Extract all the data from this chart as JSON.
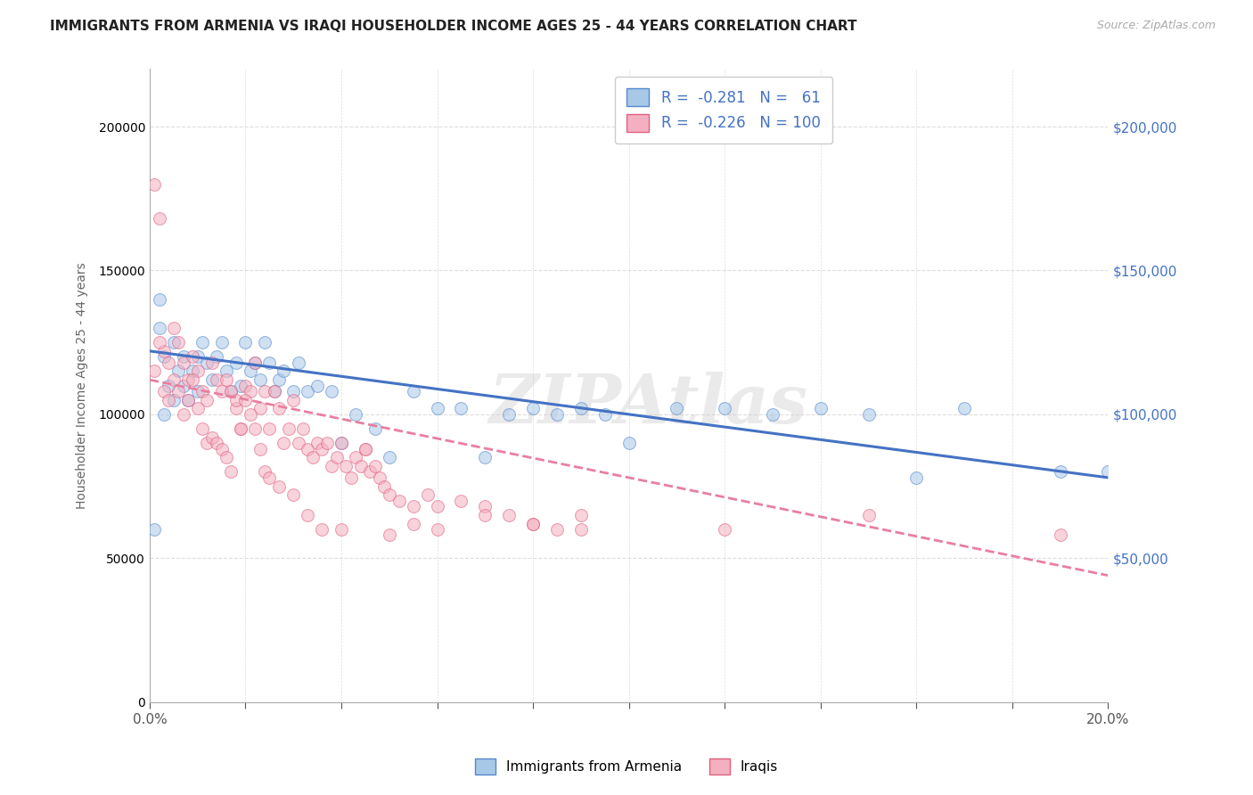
{
  "title": "IMMIGRANTS FROM ARMENIA VS IRAQI HOUSEHOLDER INCOME AGES 25 - 44 YEARS CORRELATION CHART",
  "source": "Source: ZipAtlas.com",
  "ylabel": "Householder Income Ages 25 - 44 years",
  "watermark": "ZIPAtlas",
  "armenia_x": [
    0.001,
    0.002,
    0.002,
    0.003,
    0.003,
    0.004,
    0.005,
    0.005,
    0.006,
    0.007,
    0.007,
    0.008,
    0.009,
    0.01,
    0.01,
    0.011,
    0.012,
    0.013,
    0.014,
    0.015,
    0.016,
    0.017,
    0.018,
    0.019,
    0.02,
    0.021,
    0.022,
    0.023,
    0.024,
    0.025,
    0.026,
    0.027,
    0.028,
    0.03,
    0.031,
    0.033,
    0.035,
    0.038,
    0.04,
    0.043,
    0.047,
    0.05,
    0.055,
    0.06,
    0.065,
    0.07,
    0.075,
    0.08,
    0.085,
    0.09,
    0.095,
    0.1,
    0.11,
    0.12,
    0.13,
    0.14,
    0.15,
    0.16,
    0.17,
    0.19,
    0.2
  ],
  "armenia_y": [
    60000,
    130000,
    140000,
    120000,
    100000,
    110000,
    125000,
    105000,
    115000,
    120000,
    110000,
    105000,
    115000,
    120000,
    108000,
    125000,
    118000,
    112000,
    120000,
    125000,
    115000,
    108000,
    118000,
    110000,
    125000,
    115000,
    118000,
    112000,
    125000,
    118000,
    108000,
    112000,
    115000,
    108000,
    118000,
    108000,
    110000,
    108000,
    90000,
    100000,
    95000,
    85000,
    108000,
    102000,
    102000,
    85000,
    100000,
    102000,
    100000,
    102000,
    100000,
    90000,
    102000,
    102000,
    100000,
    102000,
    100000,
    78000,
    102000,
    80000,
    80000
  ],
  "iraqi_x": [
    0.001,
    0.002,
    0.003,
    0.004,
    0.005,
    0.006,
    0.007,
    0.008,
    0.009,
    0.01,
    0.011,
    0.012,
    0.013,
    0.014,
    0.015,
    0.016,
    0.017,
    0.018,
    0.019,
    0.02,
    0.021,
    0.022,
    0.023,
    0.024,
    0.025,
    0.026,
    0.027,
    0.028,
    0.029,
    0.03,
    0.031,
    0.032,
    0.033,
    0.034,
    0.035,
    0.036,
    0.037,
    0.038,
    0.039,
    0.04,
    0.041,
    0.042,
    0.043,
    0.044,
    0.045,
    0.046,
    0.047,
    0.048,
    0.049,
    0.05,
    0.052,
    0.055,
    0.058,
    0.06,
    0.065,
    0.07,
    0.075,
    0.08,
    0.085,
    0.09,
    0.001,
    0.002,
    0.003,
    0.004,
    0.005,
    0.006,
    0.007,
    0.008,
    0.009,
    0.01,
    0.011,
    0.012,
    0.013,
    0.014,
    0.015,
    0.016,
    0.017,
    0.018,
    0.019,
    0.02,
    0.021,
    0.022,
    0.023,
    0.024,
    0.025,
    0.027,
    0.03,
    0.033,
    0.036,
    0.04,
    0.045,
    0.05,
    0.055,
    0.06,
    0.07,
    0.08,
    0.09,
    0.12,
    0.15,
    0.19
  ],
  "iraqi_y": [
    180000,
    168000,
    122000,
    118000,
    130000,
    125000,
    118000,
    112000,
    120000,
    115000,
    108000,
    105000,
    118000,
    112000,
    108000,
    112000,
    108000,
    102000,
    95000,
    110000,
    108000,
    118000,
    102000,
    108000,
    95000,
    108000,
    102000,
    90000,
    95000,
    105000,
    90000,
    95000,
    88000,
    85000,
    90000,
    88000,
    90000,
    82000,
    85000,
    90000,
    82000,
    78000,
    85000,
    82000,
    88000,
    80000,
    82000,
    78000,
    75000,
    72000,
    70000,
    68000,
    72000,
    68000,
    70000,
    68000,
    65000,
    62000,
    60000,
    65000,
    115000,
    125000,
    108000,
    105000,
    112000,
    108000,
    100000,
    105000,
    112000,
    102000,
    95000,
    90000,
    92000,
    90000,
    88000,
    85000,
    80000,
    105000,
    95000,
    105000,
    100000,
    95000,
    88000,
    80000,
    78000,
    75000,
    72000,
    65000,
    60000,
    60000,
    88000,
    58000,
    62000,
    60000,
    65000,
    62000,
    60000,
    60000,
    65000,
    58000
  ],
  "xlim": [
    0.0,
    0.2
  ],
  "ylim": [
    0,
    220000
  ],
  "blue_trend_x": [
    0.0,
    0.2
  ],
  "blue_trend_y": [
    122000,
    78000
  ],
  "pink_trend_x": [
    0.0,
    0.2
  ],
  "pink_trend_y": [
    112000,
    44000
  ],
  "right_yticks": [
    0,
    50000,
    100000,
    150000,
    200000
  ],
  "right_yticklabels": [
    "",
    "$50,000",
    "$100,000",
    "$150,000",
    "$200,000"
  ],
  "bg_color": "#ffffff",
  "grid_color": "#dddddd",
  "blue_fill": "#a8c8e8",
  "blue_edge": "#5588cc",
  "pink_fill": "#f4b0c0",
  "pink_edge": "#e06080",
  "blue_line": "#4472c4",
  "pink_line": "#e87fa0",
  "right_tick_color": "#4472c4",
  "scatter_size": 100,
  "scatter_alpha": 0.55,
  "legend_text_color": "#4472c4"
}
